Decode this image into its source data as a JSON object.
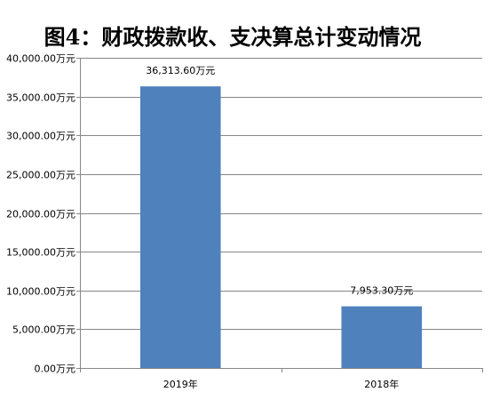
{
  "chart_data": {
    "type": "bar",
    "title": "图4：财政拨款收、支决算总计变动情况",
    "categories": [
      "2019年",
      "2018年"
    ],
    "values": [
      36313.6,
      7953.3
    ],
    "data_labels": [
      "36,313.60万元",
      "7,953.30万元"
    ],
    "xlabel": "",
    "ylabel": "",
    "ylim": [
      0,
      40000
    ],
    "y_ticks": [
      0,
      5000,
      10000,
      15000,
      20000,
      25000,
      30000,
      35000,
      40000
    ],
    "y_tick_labels": [
      "0.00万元",
      "5,000.00万元",
      "10,000.00万元",
      "15,000.00万元",
      "20,000.00万元",
      "25,000.00万元",
      "30,000.00万元",
      "35,000.00万元",
      "40,000.00万元"
    ],
    "grid": true,
    "legend": "none",
    "colors": {
      "bar": "#4f81bd",
      "grid": "#878787",
      "axis": "#878787"
    }
  }
}
